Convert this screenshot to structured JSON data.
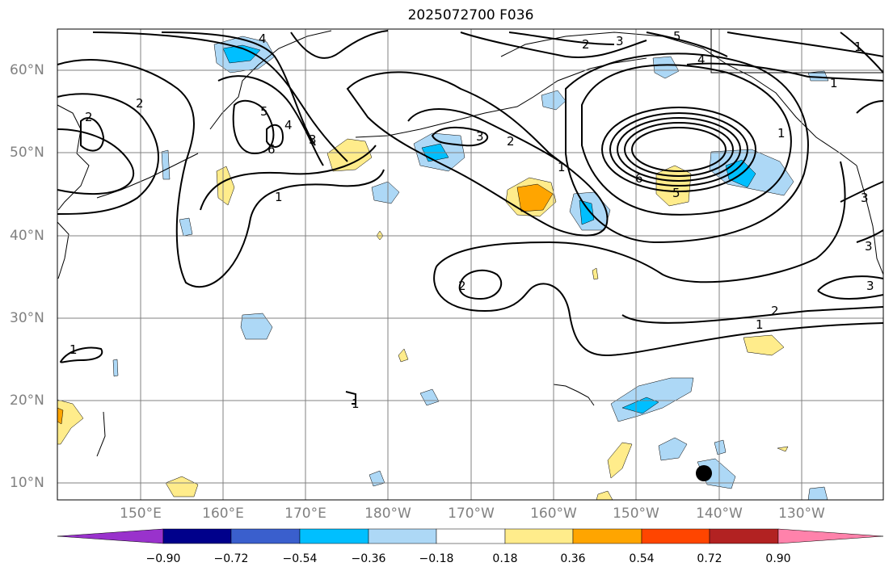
{
  "title": "2025072700 F036",
  "lon_ticks": [
    "150°E",
    "160°E",
    "170°E",
    "180°W",
    "170°W",
    "160°W",
    "150°W",
    "140°W",
    "130°W"
  ],
  "lat_ticks": [
    "60°N",
    "50°N",
    "40°N",
    "30°N",
    "20°N",
    "10°N"
  ],
  "colorbar": {
    "ticks": [
      "−0.90",
      "−0.72",
      "−0.54",
      "−0.36",
      "−0.18",
      "0.18",
      "0.36",
      "0.54",
      "0.72",
      "0.90"
    ],
    "colors": [
      "#9932cc",
      "#00008b",
      "#3a5fcd",
      "#00bfff",
      "#add8f6",
      "#ffffff",
      "#ffec8b",
      "#ffa500",
      "#ff4500",
      "#b22222",
      "#ff82ab"
    ]
  },
  "contour_labels": [
    "4",
    "2",
    "5",
    "4",
    "6",
    "3",
    "1",
    "2",
    "3",
    "2",
    "1",
    "3",
    "2",
    "5",
    "1",
    "6",
    "5",
    "4",
    "2",
    "3",
    "1",
    "2",
    "1",
    "3",
    "3",
    "1",
    "1",
    "1"
  ],
  "marker": "storm-center-dot"
}
